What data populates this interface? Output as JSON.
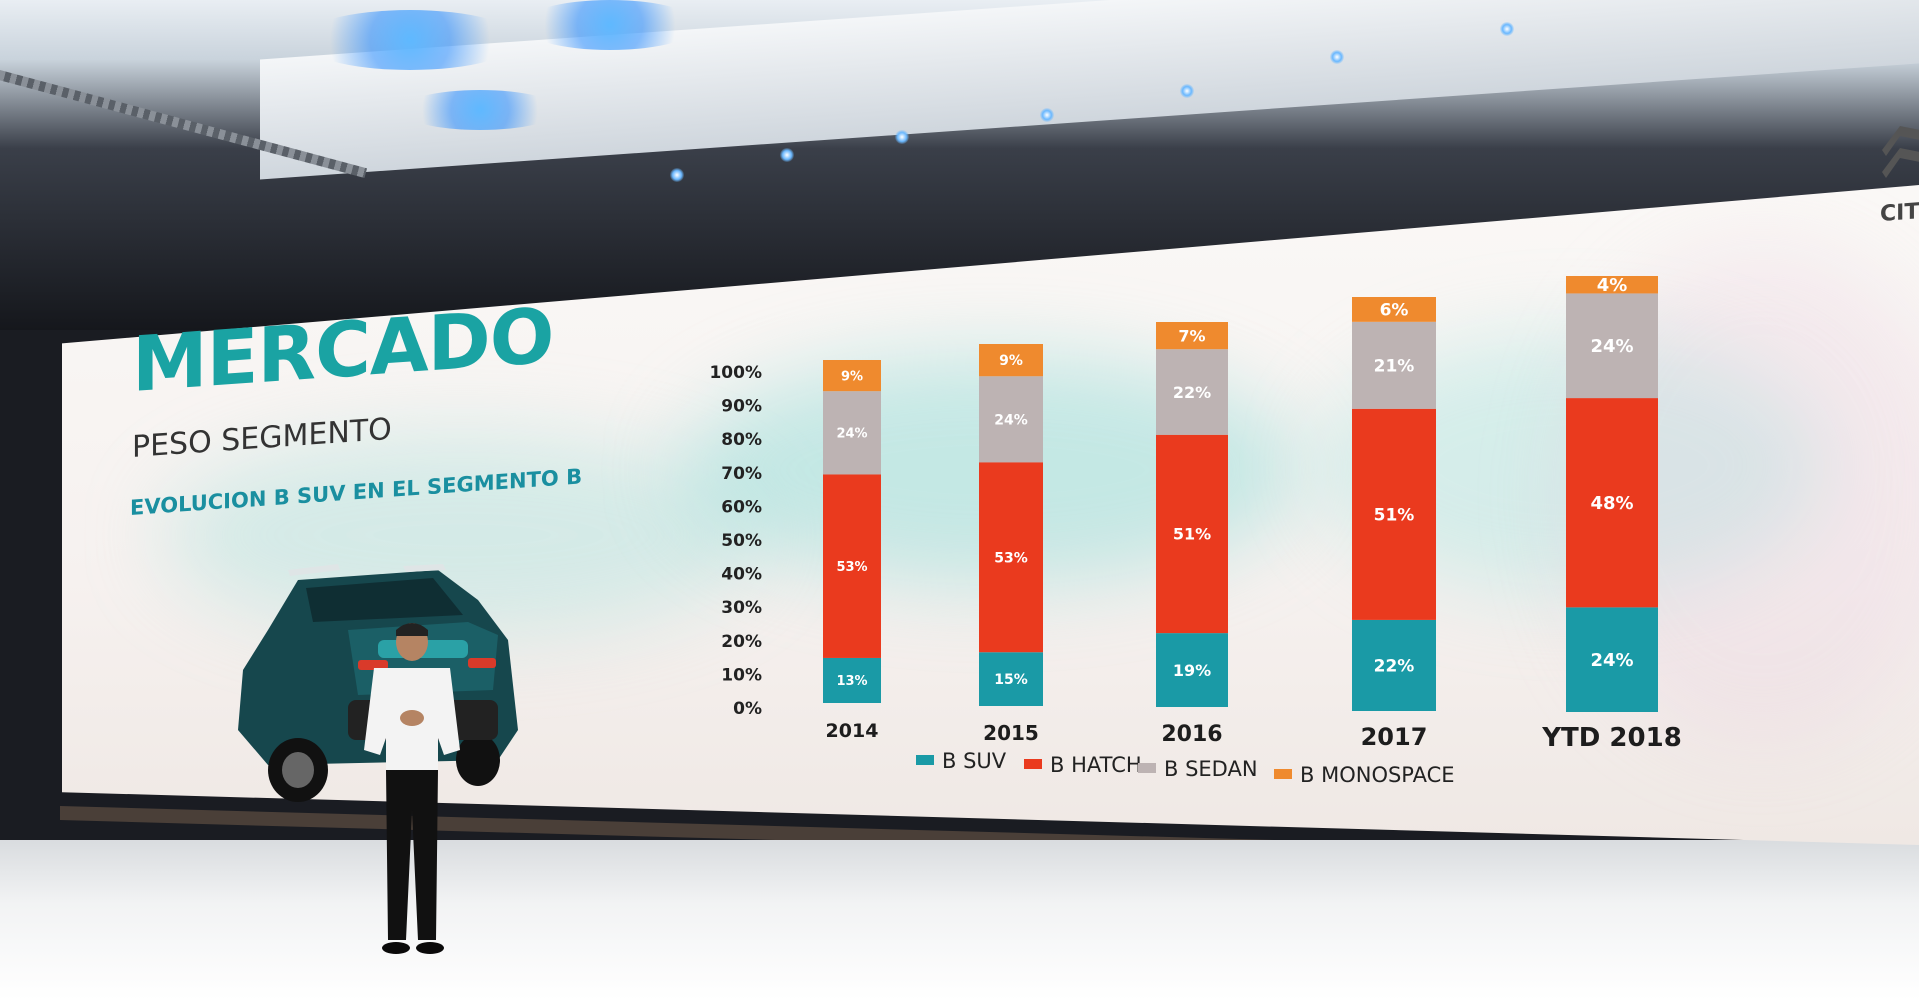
{
  "slide": {
    "title": "MERCADO",
    "subtitle": "PESO SEGMENTO",
    "caption": "EVOLUCION B SUV EN EL SEGMENTO B",
    "brand": "CITR"
  },
  "colors": {
    "b_suv": "#1a9aa6",
    "b_hatch": "#ea3a1e",
    "b_sedan": "#bdb3b3",
    "b_monospace": "#ef8a2e",
    "title_teal": "#1aa3a3"
  },
  "chart_data": {
    "type": "bar",
    "stacked": true,
    "categories": [
      "2014",
      "2015",
      "2016",
      "2017",
      "YTD 2018"
    ],
    "series": [
      {
        "name": "B SUV",
        "values": [
          13,
          15,
          19,
          22,
          24
        ],
        "labels": [
          "13%",
          "15%",
          "19%",
          "22%",
          "24%"
        ]
      },
      {
        "name": "B HATCH",
        "values": [
          53,
          53,
          51,
          51,
          48
        ],
        "labels": [
          "53%",
          "53%",
          "51%",
          "51%",
          "48%"
        ]
      },
      {
        "name": "B SEDAN",
        "values": [
          24,
          24,
          22,
          21,
          24
        ],
        "labels": [
          "24%",
          "24%",
          "22%",
          "21%",
          "24%"
        ]
      },
      {
        "name": "B MONOSPACE",
        "values": [
          9,
          9,
          7,
          6,
          4
        ],
        "labels": [
          "9%",
          "9%",
          "7%",
          "6%",
          "4%"
        ]
      }
    ],
    "yticks": [
      "100%",
      "90%",
      "80%",
      "70%",
      "60%",
      "50%",
      "40%",
      "30%",
      "20%",
      "10%",
      "0%"
    ],
    "ylim": [
      0,
      100
    ],
    "grid": false,
    "legend_position": "bottom",
    "title": "",
    "xlabel": "",
    "ylabel": ""
  }
}
